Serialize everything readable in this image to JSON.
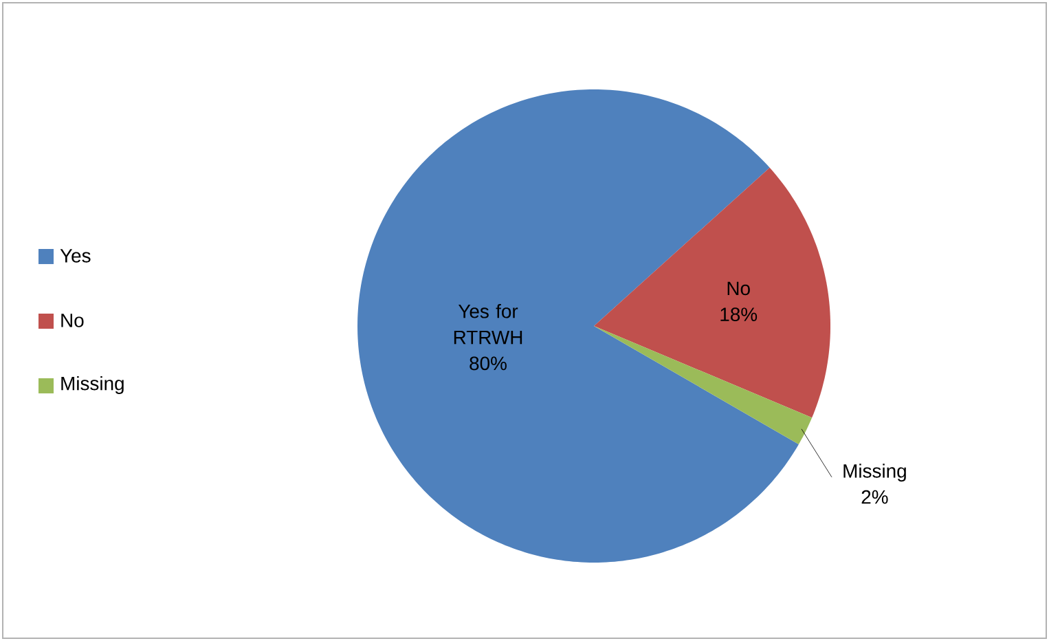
{
  "chart_data": {
    "type": "pie",
    "categories": [
      "Yes",
      "No",
      "Missing"
    ],
    "values": [
      80,
      18,
      2
    ],
    "colors": [
      "#4f81bd",
      "#c0504d",
      "#9bbb59"
    ],
    "value_labels": [
      "Yes for\nRTRWH\n80%",
      "No\n18%",
      "Missing\n2%"
    ],
    "legend": "left"
  }
}
